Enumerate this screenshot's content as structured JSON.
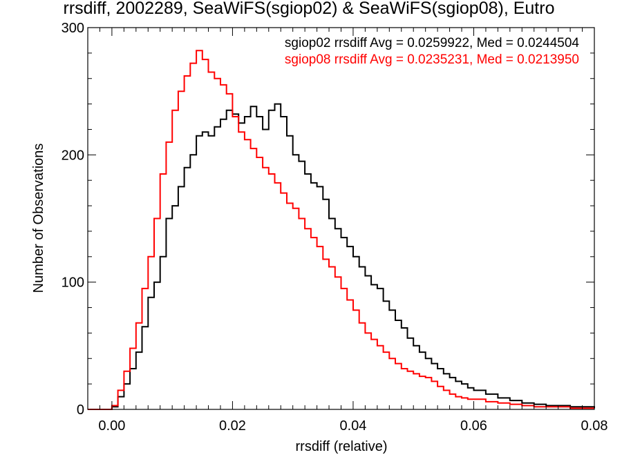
{
  "chart_data": {
    "type": "line",
    "title": "rrsdiff, 2002289, SeaWiFS(sgiop02) & SeaWiFS(sgiop08), Eutro",
    "xlabel": "rrsdiff (relative)",
    "ylabel": "Number of Observations",
    "xlim": [
      -0.004,
      0.08
    ],
    "ylim": [
      0,
      300
    ],
    "x_ticks": [
      "0.00",
      "0.02",
      "0.04",
      "0.06",
      "0.08"
    ],
    "y_ticks": [
      "0",
      "100",
      "200",
      "300"
    ],
    "grid": false,
    "legend_position": "top-right",
    "annotations": [
      {
        "text": "sgiop02 rrsdiff Avg = 0.0259922, Med = 0.0244504",
        "color": "#000000"
      },
      {
        "text": "sgiop08 rrsdiff Avg = 0.0235231, Med = 0.0213950",
        "color": "#ff0000"
      }
    ],
    "series": [
      {
        "color": "#000000",
        "x": [
          -0.004,
          -0.002,
          0.0,
          0.001,
          0.002,
          0.003,
          0.004,
          0.005,
          0.006,
          0.007,
          0.008,
          0.009,
          0.01,
          0.011,
          0.012,
          0.013,
          0.014,
          0.015,
          0.016,
          0.017,
          0.018,
          0.019,
          0.02,
          0.021,
          0.022,
          0.023,
          0.024,
          0.025,
          0.026,
          0.027,
          0.028,
          0.029,
          0.03,
          0.031,
          0.032,
          0.033,
          0.034,
          0.035,
          0.036,
          0.037,
          0.038,
          0.039,
          0.04,
          0.041,
          0.042,
          0.043,
          0.044,
          0.045,
          0.046,
          0.047,
          0.048,
          0.049,
          0.05,
          0.051,
          0.052,
          0.053,
          0.054,
          0.055,
          0.056,
          0.057,
          0.058,
          0.059,
          0.06,
          0.062,
          0.064,
          0.066,
          0.068,
          0.07,
          0.072,
          0.074,
          0.076,
          0.078,
          0.08
        ],
        "y": [
          0,
          0,
          2,
          10,
          20,
          32,
          45,
          65,
          88,
          100,
          120,
          150,
          160,
          175,
          190,
          200,
          215,
          218,
          215,
          222,
          228,
          235,
          232,
          225,
          230,
          238,
          230,
          220,
          235,
          240,
          230,
          215,
          200,
          195,
          185,
          178,
          175,
          165,
          150,
          142,
          135,
          128,
          120,
          112,
          105,
          98,
          95,
          85,
          78,
          70,
          64,
          56,
          50,
          45,
          40,
          36,
          32,
          28,
          25,
          22,
          20,
          17,
          15,
          12,
          9,
          7,
          5,
          4,
          3,
          3,
          2,
          2,
          1
        ]
      },
      {
        "color": "#ff0000",
        "x": [
          -0.004,
          -0.002,
          0.0,
          0.001,
          0.002,
          0.003,
          0.004,
          0.005,
          0.006,
          0.007,
          0.008,
          0.009,
          0.01,
          0.011,
          0.012,
          0.013,
          0.014,
          0.015,
          0.016,
          0.017,
          0.018,
          0.019,
          0.02,
          0.021,
          0.022,
          0.023,
          0.024,
          0.025,
          0.026,
          0.027,
          0.028,
          0.029,
          0.03,
          0.031,
          0.032,
          0.033,
          0.034,
          0.035,
          0.036,
          0.037,
          0.038,
          0.039,
          0.04,
          0.041,
          0.042,
          0.043,
          0.044,
          0.045,
          0.046,
          0.047,
          0.048,
          0.049,
          0.05,
          0.051,
          0.052,
          0.053,
          0.054,
          0.055,
          0.056,
          0.057,
          0.058,
          0.059,
          0.06,
          0.062,
          0.064,
          0.066,
          0.068,
          0.07,
          0.072,
          0.074,
          0.076,
          0.078,
          0.08
        ],
        "y": [
          0,
          0,
          3,
          15,
          30,
          48,
          68,
          95,
          120,
          150,
          185,
          210,
          235,
          250,
          262,
          272,
          282,
          275,
          265,
          260,
          255,
          248,
          230,
          218,
          212,
          205,
          198,
          190,
          185,
          178,
          170,
          162,
          158,
          150,
          142,
          135,
          128,
          118,
          112,
          104,
          95,
          86,
          78,
          68,
          60,
          55,
          50,
          45,
          40,
          36,
          32,
          30,
          28,
          26,
          25,
          22,
          18,
          15,
          12,
          10,
          9,
          8,
          8,
          6,
          5,
          4,
          3,
          2,
          2,
          2,
          1,
          1,
          1
        ]
      }
    ]
  }
}
